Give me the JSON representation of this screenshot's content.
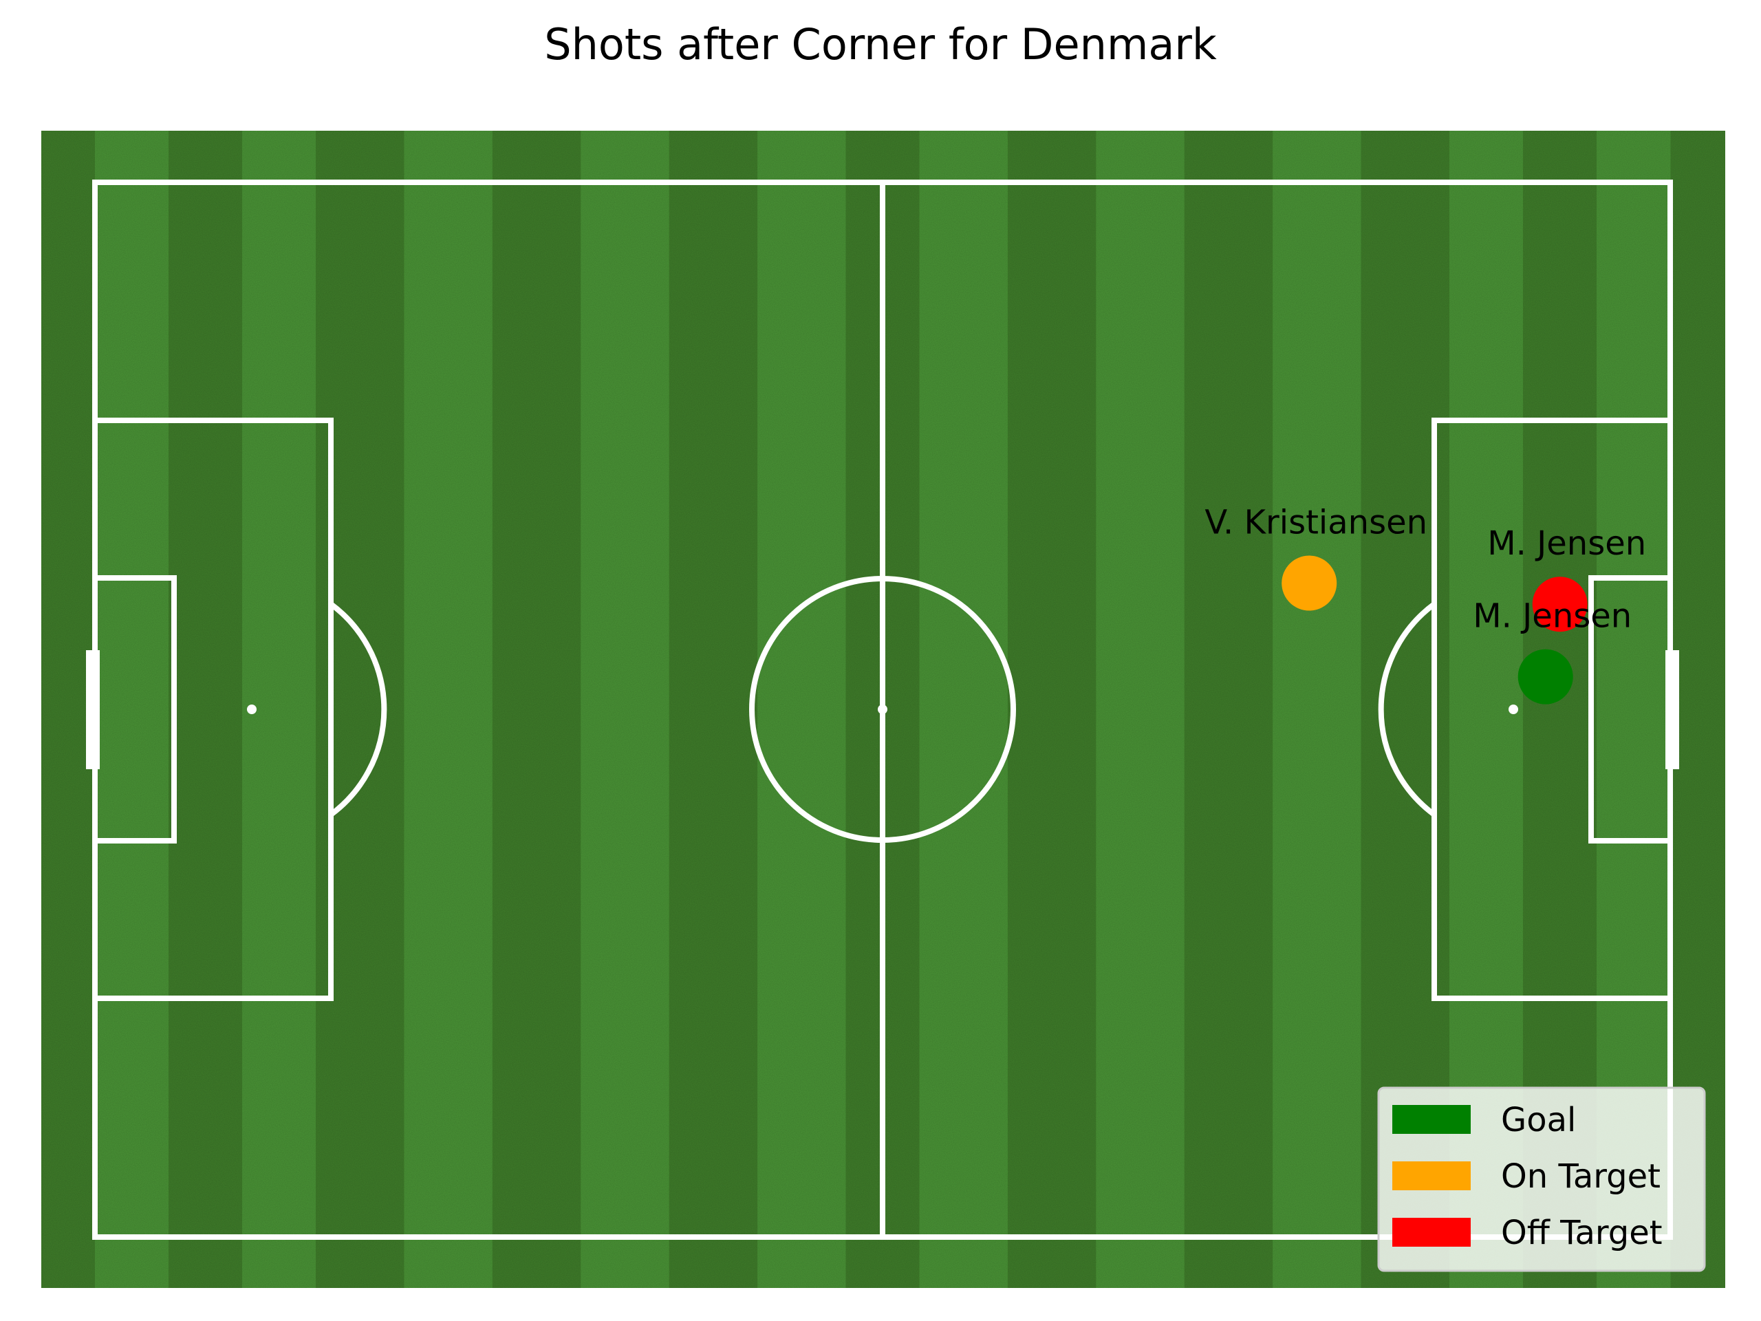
{
  "chart_data": {
    "type": "scatter",
    "title": "Shots after Corner for Denmark",
    "pitch": {
      "length": 120,
      "width": 80,
      "grid": false
    },
    "legend": {
      "placement": "bottom-right",
      "entries": [
        {
          "label": "Goal",
          "color": "#008000"
        },
        {
          "label": "On Target",
          "color": "#FFA500"
        },
        {
          "label": "Off Target",
          "color": "#FF0000"
        }
      ]
    },
    "shots": [
      {
        "player": "M. Jensen",
        "x": 110.5,
        "y": 37.5,
        "outcome": "Goal",
        "color": "#008000"
      },
      {
        "player": "M. Jensen",
        "x": 111.6,
        "y": 32.0,
        "outcome": "Off Target",
        "color": "#FF0000"
      },
      {
        "player": "V. Kristiansen",
        "x": 92.5,
        "y": 30.4,
        "outcome": "On Target",
        "color": "#FFA500"
      }
    ]
  }
}
